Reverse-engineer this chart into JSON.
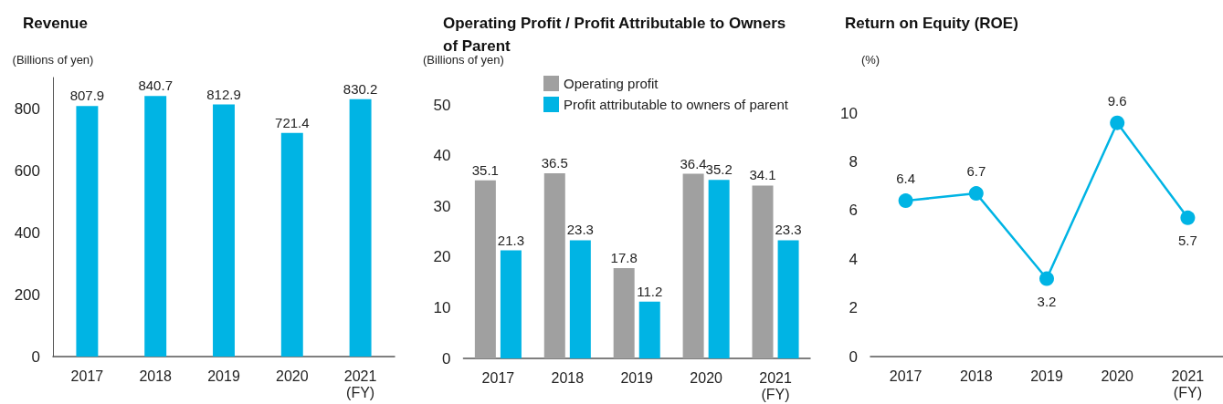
{
  "chart_data": [
    {
      "type": "bar",
      "title": "Revenue",
      "ylabel": "(Billions of yen)",
      "xlabel": "(FY)",
      "categories": [
        "2017",
        "2018",
        "2019",
        "2020",
        "2021"
      ],
      "values": [
        807.9,
        840.7,
        812.9,
        721.4,
        830.2
      ],
      "color": "#00b4e4",
      "ylim": [
        0,
        900
      ],
      "yticks": [
        0,
        200,
        400,
        600,
        800
      ],
      "data_labels": true,
      "grid": false,
      "legend": false
    },
    {
      "type": "bar",
      "title": "Operating Profit / Profit Attributable to Owners of Parent",
      "ylabel": "(Billions of yen)",
      "xlabel": "(FY)",
      "categories": [
        "2017",
        "2018",
        "2019",
        "2020",
        "2021"
      ],
      "series": [
        {
          "name": "Operating profit",
          "color": "#a0a0a0",
          "values": [
            35.1,
            36.5,
            17.8,
            36.4,
            34.1
          ]
        },
        {
          "name": "Profit attributable to owners of parent",
          "color": "#00b4e4",
          "values": [
            21.3,
            23.3,
            11.2,
            35.2,
            23.3
          ]
        }
      ],
      "ylim": [
        0,
        50
      ],
      "yticks": [
        0,
        10,
        20,
        30,
        40,
        50
      ],
      "data_labels": true,
      "grid": false,
      "legend": "top right"
    },
    {
      "type": "line",
      "title": "Return on Equity (ROE)",
      "ylabel": "(%)",
      "xlabel": "(FY)",
      "categories": [
        "2017",
        "2018",
        "2019",
        "2020",
        "2021"
      ],
      "values": [
        6.4,
        6.7,
        3.2,
        9.6,
        5.7
      ],
      "color": "#00b4e4",
      "ylim": [
        0,
        10
      ],
      "yticks": [
        0,
        2,
        4,
        6,
        8,
        10
      ],
      "data_labels": true,
      "grid": false,
      "legend": false,
      "marker": "circle",
      "line_style": "solid"
    }
  ]
}
